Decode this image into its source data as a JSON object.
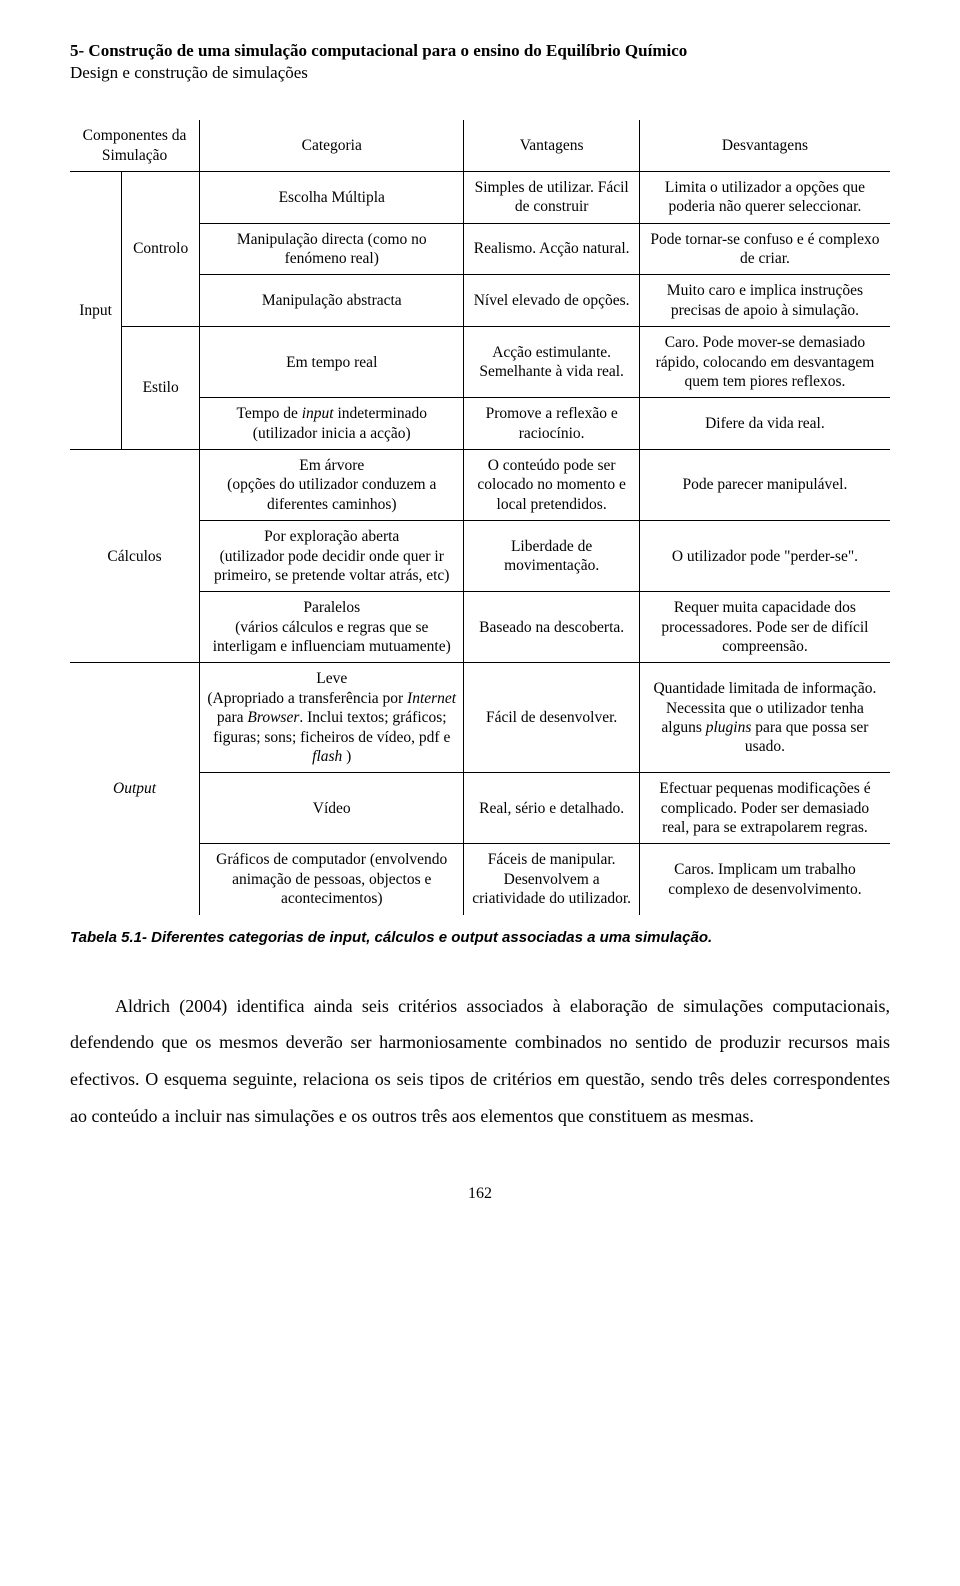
{
  "header": {
    "title": "5- Construção de uma simulação computacional para o ensino do Equilíbrio Químico",
    "subtitle": "Design e construção de simulações"
  },
  "table": {
    "headers": {
      "componentes": "Componentes da Simulação",
      "categoria": "Categoria",
      "vantagens": "Vantagens",
      "desvantagens": "Desvantagens"
    },
    "input": {
      "label": "Input",
      "controlo": {
        "label": "Controlo",
        "rows": [
          {
            "cat": "Escolha Múltipla",
            "vant": "Simples de utilizar. Fácil de construir",
            "desv": "Limita o utilizador a opções que poderia não querer seleccionar."
          },
          {
            "cat_html": "Manipulação directa (como no fenómeno real)",
            "vant": "Realismo. Acção natural.",
            "desv": "Pode tornar-se confuso e é complexo de criar."
          },
          {
            "cat": "Manipulação abstracta",
            "vant": "Nível elevado de opções.",
            "desv": "Muito caro e implica instruções precisas de apoio à simulação."
          }
        ]
      },
      "estilo": {
        "label": "Estilo",
        "rows": [
          {
            "cat": "Em tempo real",
            "vant": "Acção estimulante. Semelhante à vida real.",
            "desv": "Caro. Pode mover-se demasiado rápido, colocando em desvantagem quem tem piores reflexos."
          },
          {
            "cat_label": "Tempo de ",
            "cat_italic": "input",
            "cat_tail": " indeterminado (utilizador inicia a acção)",
            "vant": "Promove a reflexão e raciocínio.",
            "desv": "Difere da vida real."
          }
        ]
      }
    },
    "calculos": {
      "label": "Cálculos",
      "rows": [
        {
          "cat": "Em árvore\n(opções do utilizador conduzem a diferentes caminhos)",
          "vant": "O conteúdo pode ser colocado no momento e local pretendidos.",
          "desv": "Pode parecer manipulável."
        },
        {
          "cat": "Por exploração aberta\n(utilizador pode decidir onde quer ir primeiro, se pretende voltar atrás, etc)",
          "vant": "Liberdade de movimentação.",
          "desv": "O utilizador pode \"perder-se\"."
        },
        {
          "cat": "Paralelos\n(vários cálculos e regras que se interligam e influenciam mutuamente)",
          "vant": "Baseado na descoberta.",
          "desv": "Requer muita capacidade dos processadores. Pode ser de difícil compreensão."
        }
      ]
    },
    "output": {
      "label": "Output",
      "rows": [
        {
          "cat_pre": "Leve\n(Apropriado a transferência por ",
          "cat_i1": "Internet",
          "cat_mid": " para ",
          "cat_i2": "Browser",
          "cat_post1": ". Inclui textos; gráficos; figuras; sons; ficheiros de vídeo, pdf e ",
          "cat_i3": "flash",
          "cat_post2": " )",
          "vant": "Fácil de desenvolver.",
          "desv_pre": "Quantidade limitada de informação. Necessita que o utilizador tenha alguns ",
          "desv_i": "plugins",
          "desv_post": " para que possa ser usado."
        },
        {
          "cat": "Vídeo",
          "vant": "Real, sério e detalhado.",
          "desv": "Efectuar pequenas modificações é complicado. Poder ser demasiado real, para se extrapolarem regras."
        },
        {
          "cat": "Gráficos de computador (envolvendo animação de pessoas, objectos e acontecimentos)",
          "vant": "Fáceis de manipular. Desenvolvem a criatividade do utilizador.",
          "desv": "Caros. Implicam um trabalho complexo de desenvolvimento."
        }
      ]
    }
  },
  "caption_pre": "Tabela  5.1",
  "caption_post": "- Diferentes categorias de input, cálculos e output associadas a uma simulação.",
  "paragraph": "Aldrich (2004) identifica ainda seis critérios associados à elaboração de simulações computacionais, defendendo que os mesmos deverão ser harmoniosamente combinados no sentido de produzir recursos mais efectivos. O esquema seguinte, relaciona os seis tipos de critérios em questão, sendo três deles correspondentes ao conteúdo a incluir nas simulações e os outros três aos elementos que constituem as mesmas.",
  "page_number": "162"
}
